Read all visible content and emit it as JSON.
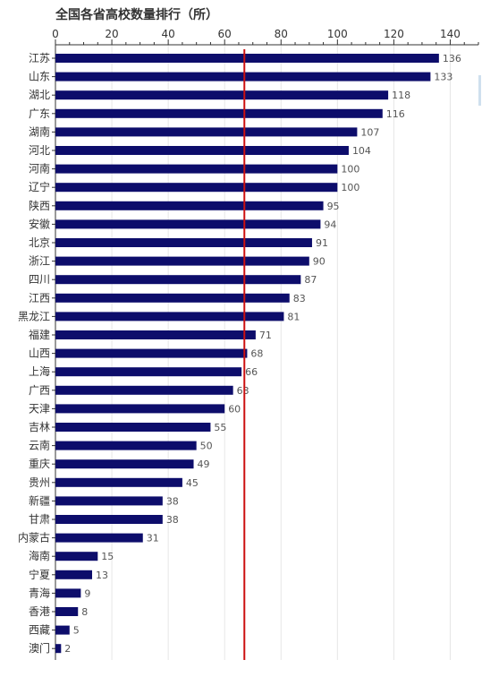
{
  "chart_data": {
    "type": "bar",
    "orientation": "horizontal",
    "title": "全国各省高校数量排行（所）",
    "xlim": [
      0,
      150
    ],
    "xticks": [
      0,
      20,
      40,
      60,
      80,
      100,
      120,
      140
    ],
    "grid": true,
    "reference_line": 67,
    "categories": [
      "江苏",
      "山东",
      "湖北",
      "广东",
      "湖南",
      "河北",
      "河南",
      "辽宁",
      "陕西",
      "安徽",
      "北京",
      "浙江",
      "四川",
      "江西",
      "黑龙江",
      "福建",
      "山西",
      "上海",
      "广西",
      "天津",
      "吉林",
      "云南",
      "重庆",
      "贵州",
      "新疆",
      "甘肃",
      "内蒙古",
      "海南",
      "宁夏",
      "青海",
      "香港",
      "西藏",
      "澳门"
    ],
    "values": [
      136,
      133,
      118,
      116,
      107,
      104,
      100,
      100,
      95,
      94,
      91,
      90,
      87,
      83,
      81,
      71,
      68,
      66,
      63,
      60,
      55,
      50,
      49,
      45,
      38,
      38,
      31,
      15,
      13,
      9,
      8,
      5,
      2
    ]
  },
  "colors": {
    "bar": "#0d0d6b",
    "reference_line": "#cc1111",
    "axis": "#333333",
    "grid": "#e6e6e6"
  }
}
